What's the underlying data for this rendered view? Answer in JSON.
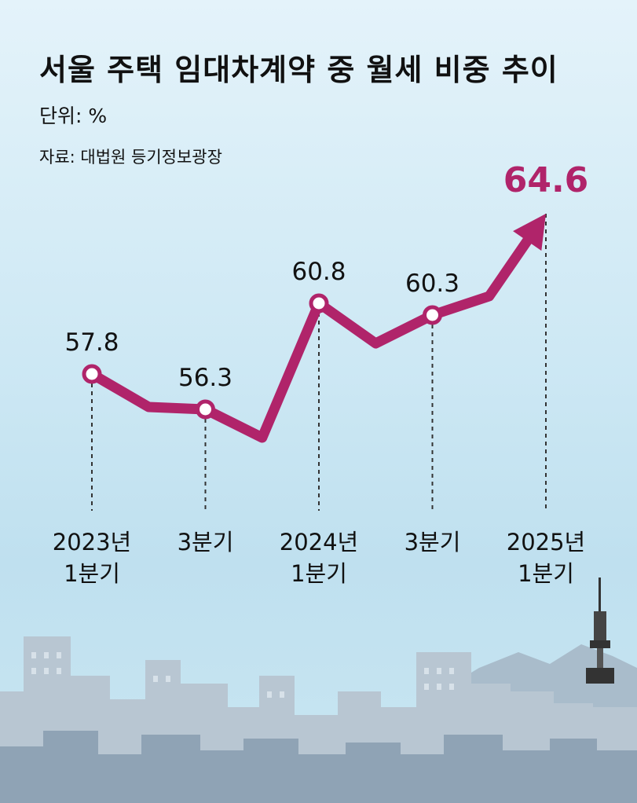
{
  "chart_data": {
    "type": "line",
    "title": "서울 주택 임대차계약 중 월세 비중 추이",
    "unit_label": "단위: %",
    "source_label": "자료: 대법원 등기정보광장",
    "ylim": [
      54,
      66
    ],
    "points": [
      {
        "x": 0,
        "value": 57.8,
        "label": "57.8",
        "marked": true,
        "category": [
          "2023년",
          "1분기"
        ]
      },
      {
        "x": 1,
        "value": 56.4,
        "label": null,
        "marked": false,
        "category": null
      },
      {
        "x": 2,
        "value": 56.3,
        "label": "56.3",
        "marked": true,
        "category": [
          "3분기"
        ]
      },
      {
        "x": 3,
        "value": 55.1,
        "label": null,
        "marked": false,
        "category": null
      },
      {
        "x": 4,
        "value": 60.8,
        "label": "60.8",
        "marked": true,
        "category": [
          "2024년",
          "1분기"
        ]
      },
      {
        "x": 5,
        "value": 59.1,
        "label": null,
        "marked": false,
        "category": null
      },
      {
        "x": 6,
        "value": 60.3,
        "label": "60.3",
        "marked": true,
        "category": [
          "3분기"
        ]
      },
      {
        "x": 7,
        "value": 61.1,
        "label": null,
        "marked": false,
        "category": null
      },
      {
        "x": 8,
        "value": 64.6,
        "label": "64.6",
        "marked": false,
        "highlight": true,
        "category": [
          "2025년",
          "1분기"
        ]
      }
    ]
  },
  "colors": {
    "line": "#b0246a",
    "highlight_label": "#b0246a",
    "text": "#111111",
    "guide": "#333333"
  }
}
